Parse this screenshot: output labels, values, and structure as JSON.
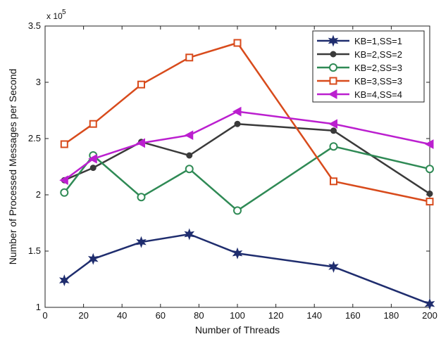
{
  "chart_data": {
    "type": "line",
    "xlabel": "Number of Threads",
    "ylabel": "Number of Processed Messages per Second",
    "y_multiplier_label": "x 10",
    "y_multiplier_exponent": "5",
    "xlim": [
      0,
      200
    ],
    "ylim": [
      1,
      3.5
    ],
    "x_ticks": [
      0,
      20,
      40,
      60,
      80,
      100,
      120,
      140,
      160,
      180,
      200
    ],
    "x_tick_labels": [
      "0",
      "20",
      "40",
      "60",
      "80",
      "100",
      "120",
      "140",
      "160",
      "180",
      "200"
    ],
    "y_ticks": [
      1,
      1.5,
      2,
      2.5,
      3,
      3.5
    ],
    "y_tick_labels": [
      "1",
      "1.5",
      "2",
      "2.5",
      "3",
      "3.5"
    ],
    "grid": false,
    "legend_position": "top-right",
    "x": [
      10,
      25,
      50,
      75,
      100,
      150,
      200
    ],
    "series": [
      {
        "name": "KB=1,SS=1",
        "color": "#1f2d6e",
        "marker": "star",
        "values": [
          1.24,
          1.43,
          1.58,
          1.65,
          1.48,
          1.36,
          1.03
        ]
      },
      {
        "name": "KB=2,SS=2",
        "color": "#3a3a3a",
        "marker": "dot",
        "values": [
          2.13,
          2.24,
          2.47,
          2.35,
          2.63,
          2.57,
          2.01
        ]
      },
      {
        "name": "KB=2,SS=3",
        "color": "#2f8a55",
        "marker": "circle",
        "values": [
          2.02,
          2.35,
          1.98,
          2.23,
          1.86,
          2.43,
          2.23
        ]
      },
      {
        "name": "KB=3,SS=3",
        "color": "#d84b1c",
        "marker": "square",
        "values": [
          2.45,
          2.63,
          2.98,
          3.22,
          3.35,
          2.12,
          1.94
        ]
      },
      {
        "name": "KB=4,SS=4",
        "color": "#bb1fcf",
        "marker": "triangle-left",
        "values": [
          2.13,
          2.32,
          2.46,
          2.53,
          2.74,
          2.63,
          2.45
        ]
      }
    ]
  }
}
